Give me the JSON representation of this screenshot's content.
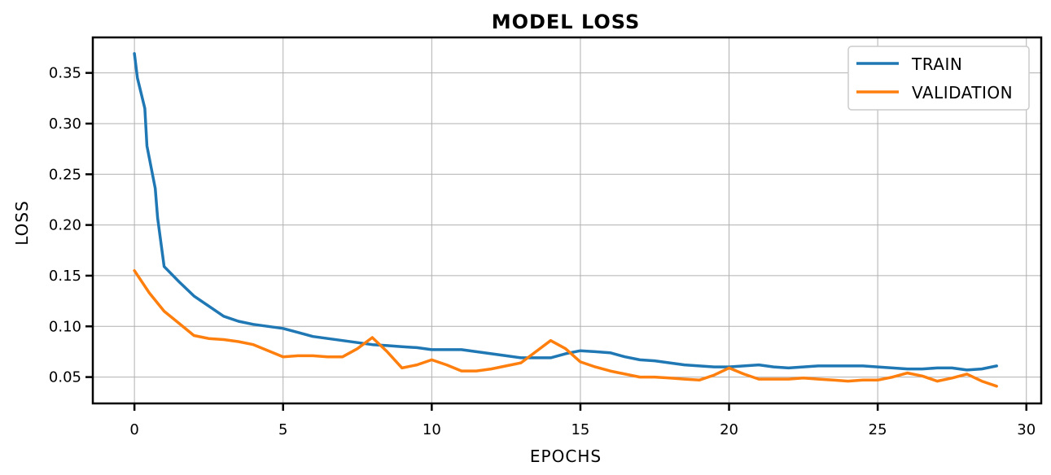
{
  "chart_data": {
    "type": "line",
    "title": "MODEL LOSS",
    "xlabel": "EPOCHS",
    "ylabel": "LOSS",
    "xlim": [
      -1.4,
      30.5
    ],
    "ylim": [
      0.024,
      0.385
    ],
    "x_ticks": [
      0,
      5,
      10,
      15,
      20,
      25,
      30
    ],
    "y_ticks": [
      0.05,
      0.1,
      0.15,
      0.2,
      0.25,
      0.3,
      0.35
    ],
    "x_tick_labels": [
      "0",
      "5",
      "10",
      "15",
      "20",
      "25",
      "30"
    ],
    "y_tick_labels": [
      "0.05",
      "0.10",
      "0.15",
      "0.20",
      "0.25",
      "0.30",
      "0.35"
    ],
    "grid": true,
    "legend_position": "top-right",
    "series": [
      {
        "name": "TRAIN",
        "color": "#1f77b4",
        "x": [
          0,
          0.1,
          0.35,
          0.42,
          0.7,
          0.78,
          1,
          1.5,
          2,
          2.5,
          3,
          3.5,
          4,
          4.5,
          5,
          5.5,
          6,
          6.5,
          7,
          7.5,
          8,
          8.5,
          9,
          9.5,
          10,
          10.5,
          11,
          11.5,
          12,
          12.5,
          13,
          13.5,
          14,
          14.5,
          15,
          15.5,
          16,
          16.5,
          17,
          17.5,
          18,
          18.5,
          19,
          19.5,
          20,
          20.5,
          21,
          21.5,
          22,
          22.5,
          23,
          23.5,
          24,
          24.5,
          25,
          25.5,
          26,
          26.5,
          27,
          27.5,
          28,
          28.5,
          29
        ],
        "y": [
          0.369,
          0.345,
          0.315,
          0.278,
          0.236,
          0.207,
          0.159,
          0.144,
          0.13,
          0.12,
          0.11,
          0.105,
          0.102,
          0.1,
          0.098,
          0.094,
          0.09,
          0.088,
          0.086,
          0.084,
          0.082,
          0.081,
          0.08,
          0.079,
          0.077,
          0.077,
          0.077,
          0.075,
          0.073,
          0.071,
          0.069,
          0.069,
          0.069,
          0.073,
          0.076,
          0.075,
          0.074,
          0.07,
          0.067,
          0.066,
          0.064,
          0.062,
          0.061,
          0.06,
          0.06,
          0.061,
          0.062,
          0.06,
          0.059,
          0.06,
          0.061,
          0.061,
          0.061,
          0.061,
          0.06,
          0.059,
          0.058,
          0.058,
          0.059,
          0.059,
          0.057,
          0.058,
          0.061
        ]
      },
      {
        "name": "VALIDATION",
        "color": "#ff7f0e",
        "x": [
          0,
          0.5,
          1,
          1.5,
          2,
          2.5,
          3,
          3.5,
          4,
          4.5,
          5,
          5.5,
          6,
          6.5,
          7,
          7.5,
          8,
          8.5,
          9,
          9.5,
          10,
          10.5,
          11,
          11.5,
          12,
          12.5,
          13,
          13.5,
          14,
          14.5,
          15,
          15.5,
          16,
          16.5,
          17,
          17.5,
          18,
          18.5,
          19,
          19.5,
          20,
          20.5,
          21,
          21.5,
          22,
          22.5,
          23,
          23.5,
          24,
          24.5,
          25,
          25.5,
          26,
          26.5,
          27,
          27.5,
          28,
          28.5,
          29
        ],
        "y": [
          0.155,
          0.133,
          0.115,
          0.103,
          0.091,
          0.088,
          0.087,
          0.085,
          0.082,
          0.076,
          0.07,
          0.071,
          0.071,
          0.07,
          0.07,
          0.078,
          0.089,
          0.075,
          0.059,
          0.062,
          0.067,
          0.062,
          0.056,
          0.056,
          0.058,
          0.061,
          0.064,
          0.075,
          0.086,
          0.078,
          0.065,
          0.06,
          0.056,
          0.053,
          0.05,
          0.05,
          0.049,
          0.048,
          0.047,
          0.052,
          0.059,
          0.053,
          0.048,
          0.048,
          0.048,
          0.049,
          0.048,
          0.047,
          0.046,
          0.047,
          0.047,
          0.05,
          0.054,
          0.051,
          0.046,
          0.049,
          0.053,
          0.046,
          0.041
        ]
      }
    ]
  }
}
